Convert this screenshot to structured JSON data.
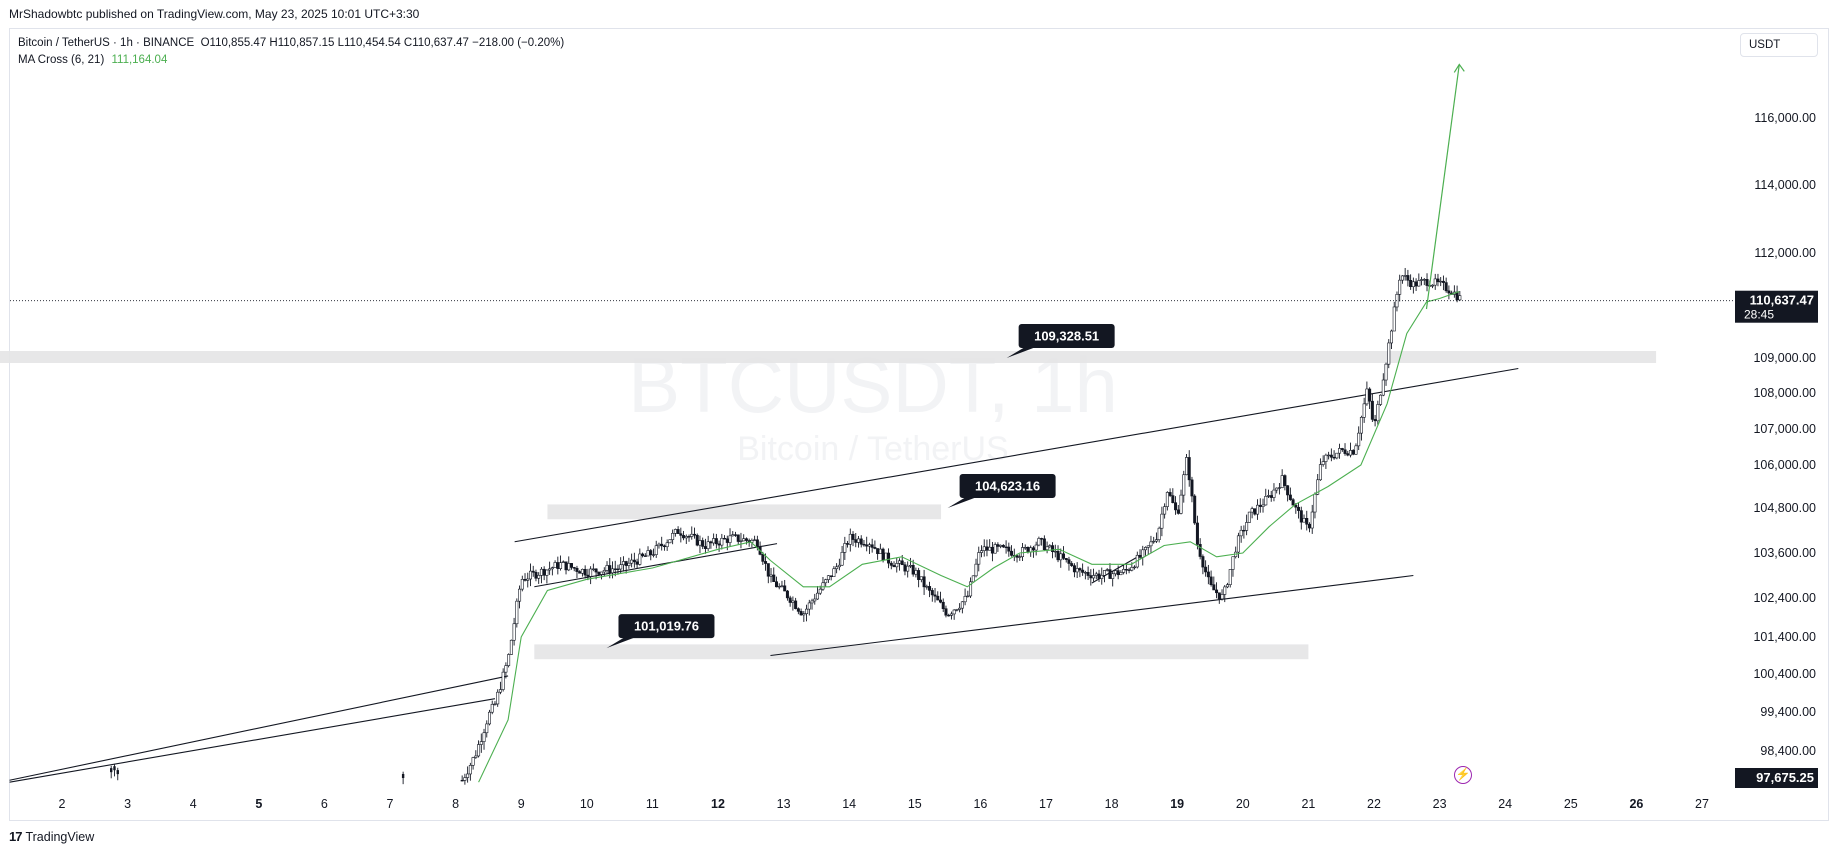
{
  "header": {
    "published_line": "MrShadowbtc published on TradingView.com, May 23, 2025 10:01 UTC+3:30"
  },
  "legend": {
    "symbol_line": "Bitcoin / TetherUS · 1h · BINANCE",
    "ohlc": "O110,855.47  H110,857.15  L110,454.54  C110,637.47  −218.00 (−0.20%)",
    "ma_label": "MA Cross (6, 21)",
    "ma_value": "111,164.04",
    "ma_color": "#4caf50"
  },
  "currency_label": "USDT",
  "watermark": {
    "title": "BTCUSDT, 1h",
    "subtitle": "Bitcoin / TetherUS"
  },
  "footer": {
    "brand": "TradingView",
    "logo_text": "17"
  },
  "lightning_icon": "lightning-icon",
  "chart_data": {
    "type": "candlestick",
    "symbol": "BTCUSDT",
    "interval": "1h",
    "exchange": "BINANCE",
    "last_price": "110,637.47",
    "countdown": "28:45",
    "min_price_label": "97,675.25",
    "price_axis_ticks": [
      "116,000.00",
      "114,000.00",
      "112,000.00",
      "109,000.00",
      "108,000.00",
      "107,000.00",
      "106,000.00",
      "104,800.00",
      "103,600.00",
      "102,400.00",
      "101,400.00",
      "100,400.00",
      "99,400.00",
      "98,400.00"
    ],
    "time_axis_ticks": [
      {
        "label": "2",
        "bold": false
      },
      {
        "label": "3",
        "bold": false
      },
      {
        "label": "4",
        "bold": false
      },
      {
        "label": "5",
        "bold": true
      },
      {
        "label": "6",
        "bold": false
      },
      {
        "label": "7",
        "bold": false
      },
      {
        "label": "8",
        "bold": false
      },
      {
        "label": "9",
        "bold": false
      },
      {
        "label": "10",
        "bold": false
      },
      {
        "label": "11",
        "bold": false
      },
      {
        "label": "12",
        "bold": true
      },
      {
        "label": "13",
        "bold": false
      },
      {
        "label": "14",
        "bold": false
      },
      {
        "label": "15",
        "bold": false
      },
      {
        "label": "16",
        "bold": false
      },
      {
        "label": "17",
        "bold": false
      },
      {
        "label": "18",
        "bold": false
      },
      {
        "label": "19",
        "bold": true
      },
      {
        "label": "20",
        "bold": false
      },
      {
        "label": "21",
        "bold": false
      },
      {
        "label": "22",
        "bold": false
      },
      {
        "label": "23",
        "bold": false
      },
      {
        "label": "24",
        "bold": false
      },
      {
        "label": "25",
        "bold": false
      },
      {
        "label": "26",
        "bold": true
      },
      {
        "label": "27",
        "bold": false
      }
    ],
    "price_path": [
      [
        1.5,
        97600
      ],
      [
        2.8,
        97900
      ],
      [
        3.0,
        97800
      ],
      [
        7.2,
        97700
      ],
      [
        8.1,
        97650
      ],
      [
        8.3,
        98300
      ],
      [
        8.5,
        99300
      ],
      [
        8.6,
        99600
      ],
      [
        8.8,
        100800
      ],
      [
        9.0,
        102900
      ],
      [
        9.3,
        103100
      ],
      [
        9.6,
        103300
      ],
      [
        10.0,
        103100
      ],
      [
        10.5,
        103200
      ],
      [
        11.0,
        103600
      ],
      [
        11.4,
        104200
      ],
      [
        11.8,
        103800
      ],
      [
        12.2,
        104000
      ],
      [
        12.6,
        103900
      ],
      [
        12.8,
        102900
      ],
      [
        13.1,
        102400
      ],
      [
        13.3,
        102000
      ],
      [
        13.5,
        102500
      ],
      [
        13.8,
        103200
      ],
      [
        14.0,
        104000
      ],
      [
        14.3,
        103900
      ],
      [
        14.6,
        103400
      ],
      [
        15.0,
        103100
      ],
      [
        15.2,
        102600
      ],
      [
        15.5,
        102000
      ],
      [
        15.8,
        102400
      ],
      [
        16.0,
        103700
      ],
      [
        16.3,
        103700
      ],
      [
        16.6,
        103600
      ],
      [
        16.9,
        103900
      ],
      [
        17.2,
        103500
      ],
      [
        17.5,
        103100
      ],
      [
        17.8,
        103000
      ],
      [
        18.2,
        103100
      ],
      [
        18.5,
        103600
      ],
      [
        18.7,
        104100
      ],
      [
        18.85,
        105300
      ],
      [
        19.0,
        104600
      ],
      [
        19.15,
        106200
      ],
      [
        19.3,
        103900
      ],
      [
        19.5,
        102700
      ],
      [
        19.7,
        102400
      ],
      [
        19.9,
        103800
      ],
      [
        20.1,
        104600
      ],
      [
        20.4,
        105100
      ],
      [
        20.6,
        105600
      ],
      [
        20.8,
        104800
      ],
      [
        21.0,
        104200
      ],
      [
        21.2,
        106100
      ],
      [
        21.5,
        106400
      ],
      [
        21.7,
        106400
      ],
      [
        21.9,
        108100
      ],
      [
        22.0,
        107000
      ],
      [
        22.2,
        109100
      ],
      [
        22.4,
        111400
      ],
      [
        22.6,
        111100
      ],
      [
        22.8,
        111200
      ],
      [
        23.0,
        111100
      ],
      [
        23.2,
        110900
      ],
      [
        23.35,
        110640
      ]
    ],
    "ma_path": [
      [
        8.35,
        97600
      ],
      [
        8.8,
        99200
      ],
      [
        9.0,
        101400
      ],
      [
        9.4,
        102600
      ],
      [
        10.0,
        102900
      ],
      [
        11.0,
        103200
      ],
      [
        12.0,
        103700
      ],
      [
        12.5,
        103900
      ],
      [
        12.8,
        103400
      ],
      [
        13.3,
        102700
      ],
      [
        13.7,
        102700
      ],
      [
        14.2,
        103300
      ],
      [
        14.8,
        103500
      ],
      [
        15.4,
        103000
      ],
      [
        15.8,
        102700
      ],
      [
        16.2,
        103200
      ],
      [
        16.6,
        103600
      ],
      [
        17.2,
        103700
      ],
      [
        17.7,
        103300
      ],
      [
        18.3,
        103300
      ],
      [
        18.8,
        103800
      ],
      [
        19.2,
        103900
      ],
      [
        19.6,
        103500
      ],
      [
        20.0,
        103600
      ],
      [
        20.4,
        104300
      ],
      [
        20.8,
        104900
      ],
      [
        21.3,
        105400
      ],
      [
        21.8,
        106000
      ],
      [
        22.2,
        107700
      ],
      [
        22.5,
        109700
      ],
      [
        22.8,
        110600
      ],
      [
        23.0,
        110700
      ],
      [
        23.3,
        110900
      ]
    ],
    "drawings": {
      "support_zones": [
        {
          "from_day": -0.2,
          "to_day": 26.3,
          "top": 109200,
          "bottom": 108900
        },
        {
          "from_day": 9.4,
          "to_day": 15.4,
          "top": 104900,
          "bottom": 104500
        },
        {
          "from_day": 9.2,
          "to_day": 21.0,
          "top": 101200,
          "bottom": 100800
        }
      ],
      "trendlines": [
        {
          "from": [
            1.2,
            97650
          ],
          "to": [
            8.8,
            100350
          ]
        },
        {
          "from": [
            1.2,
            97600
          ],
          "to": [
            8.6,
            99750
          ]
        },
        {
          "from": [
            8.9,
            103900
          ],
          "to": [
            24.2,
            108700
          ]
        },
        {
          "from": [
            12.8,
            100900
          ],
          "to": [
            22.6,
            103000
          ]
        },
        {
          "from": [
            9.2,
            102700
          ],
          "to": [
            12.9,
            103850
          ]
        },
        {
          "from": [
            17.7,
            102800
          ],
          "to": [
            18.4,
            103500
          ]
        }
      ],
      "projection_arrow": {
        "from": [
          22.8,
          110400
        ],
        "to": [
          23.3,
          117600
        ]
      },
      "price_callouts": [
        {
          "label": "109,328.51",
          "anchor": [
            16.4,
            109000
          ]
        },
        {
          "label": "104,623.16",
          "anchor": [
            15.5,
            104800
          ]
        },
        {
          "label": "101,019.76",
          "anchor": [
            10.3,
            101100
          ]
        }
      ]
    }
  }
}
